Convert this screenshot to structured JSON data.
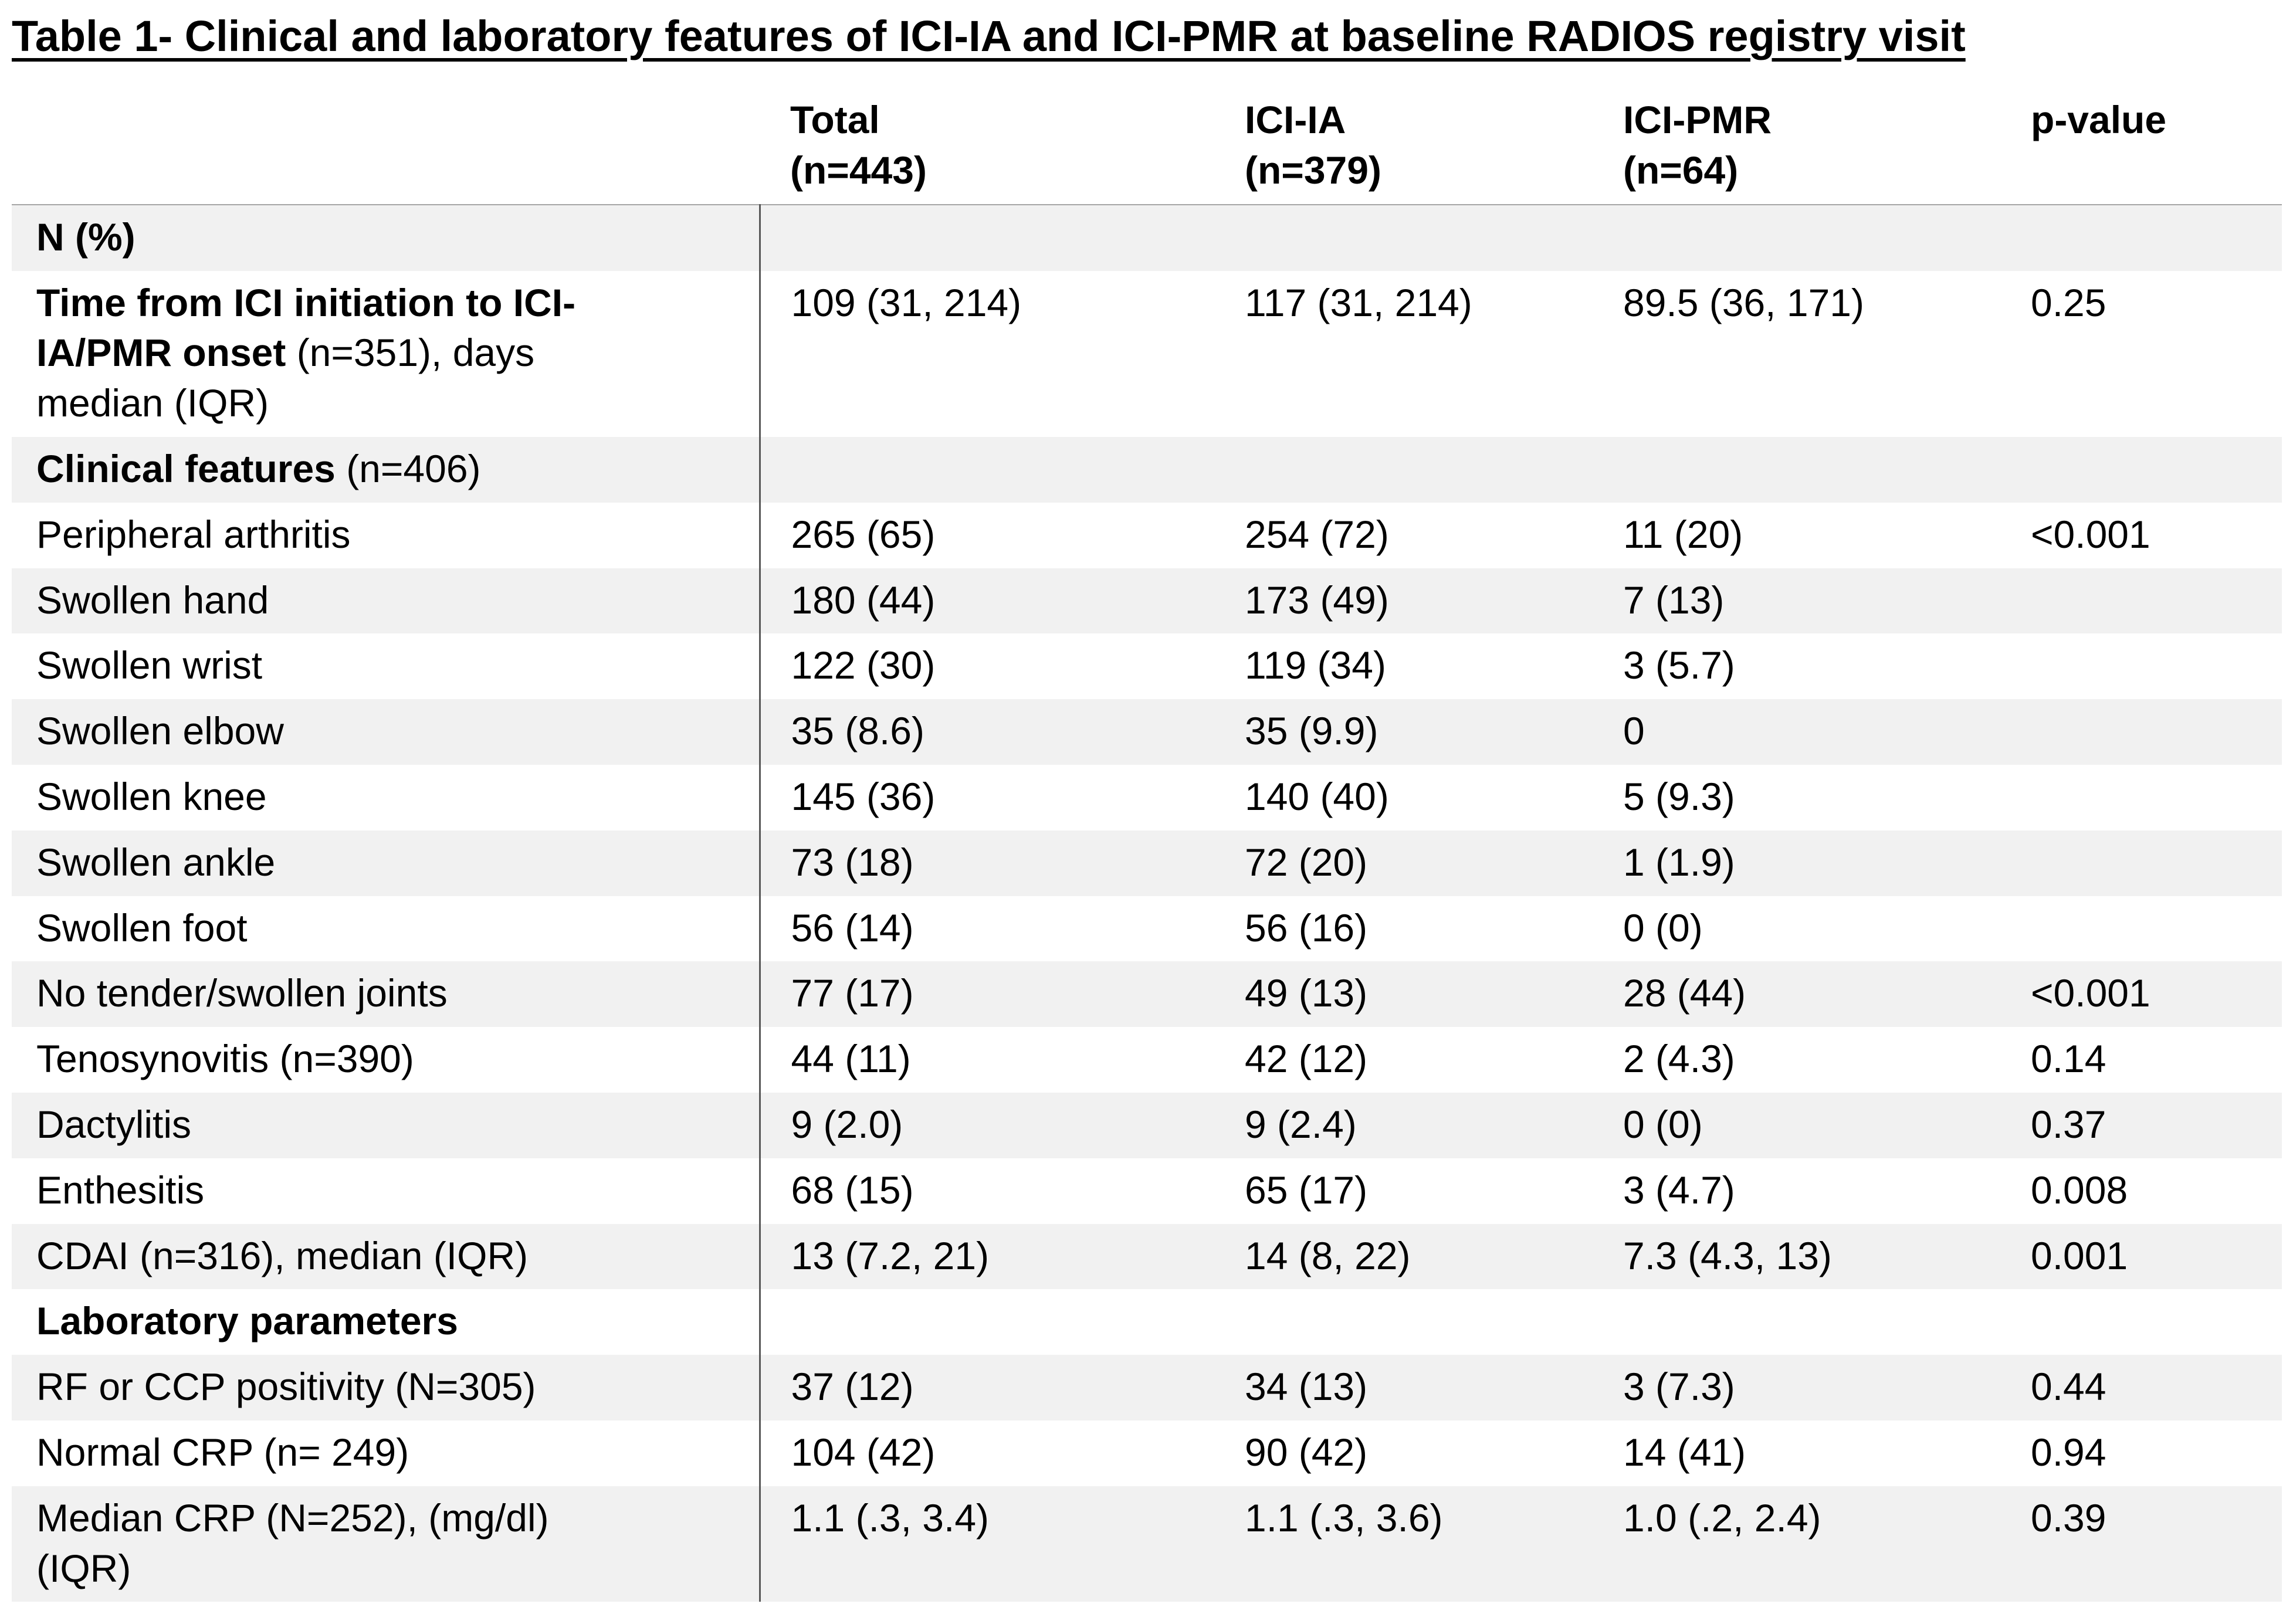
{
  "title": "Table 1- Clinical and laboratory features of ICI-IA and ICI-PMR at baseline RADIOS registry visit",
  "table": {
    "columns": [
      {
        "label": "",
        "sub": ""
      },
      {
        "label": "Total",
        "sub": "(n=443)"
      },
      {
        "label": "ICI-IA",
        "sub": "(n=379)"
      },
      {
        "label": "ICI-PMR",
        "sub": "(n=64)"
      },
      {
        "label": "p-value",
        "sub": ""
      }
    ],
    "rows": [
      {
        "bold": "N (%)",
        "text": "",
        "values": [
          "",
          "",
          "",
          ""
        ]
      },
      {
        "bold": "Time from ICI initiation to ICI-IA/PMR onset",
        "text": " (n=351), days median (IQR)",
        "values": [
          "109 (31, 214)",
          "117 (31, 214)",
          "89.5 (36, 171)",
          "0.25"
        ]
      },
      {
        "bold": "Clinical features",
        "text": " (n=406)",
        "values": [
          "",
          "",
          "",
          ""
        ]
      },
      {
        "bold": "",
        "text": "Peripheral arthritis",
        "values": [
          "265 (65)",
          "254 (72)",
          "11 (20)",
          "<0.001"
        ]
      },
      {
        "bold": "",
        "text": "Swollen hand",
        "values": [
          "180 (44)",
          "173 (49)",
          "7 (13)",
          ""
        ]
      },
      {
        "bold": "",
        "text": "Swollen wrist",
        "values": [
          "122 (30)",
          "119 (34)",
          "3 (5.7)",
          ""
        ]
      },
      {
        "bold": "",
        "text": "Swollen elbow",
        "values": [
          "35 (8.6)",
          "35 (9.9)",
          "0",
          ""
        ]
      },
      {
        "bold": "",
        "text": "Swollen knee",
        "values": [
          "145 (36)",
          "140 (40)",
          "5 (9.3)",
          ""
        ]
      },
      {
        "bold": "",
        "text": "Swollen ankle",
        "values": [
          "73 (18)",
          "72 (20)",
          "1 (1.9)",
          ""
        ]
      },
      {
        "bold": "",
        "text": "Swollen foot",
        "values": [
          "56 (14)",
          "56 (16)",
          "0 (0)",
          ""
        ]
      },
      {
        "bold": "",
        "text": "No tender/swollen joints",
        "values": [
          "77 (17)",
          "49 (13)",
          "28 (44)",
          "<0.001"
        ]
      },
      {
        "bold": "",
        "text": "Tenosynovitis (n=390)",
        "values": [
          "44 (11)",
          "42 (12)",
          "2 (4.3)",
          "0.14"
        ]
      },
      {
        "bold": "",
        "text": "Dactylitis",
        "values": [
          "9 (2.0)",
          "9 (2.4)",
          "0 (0)",
          "0.37"
        ]
      },
      {
        "bold": "",
        "text": "Enthesitis",
        "values": [
          "68 (15)",
          "65 (17)",
          "3 (4.7)",
          "0.008"
        ]
      },
      {
        "bold": "",
        "text": "CDAI (n=316), median (IQR)",
        "values": [
          "13 (7.2, 21)",
          "14 (8, 22)",
          "7.3 (4.3, 13)",
          "0.001"
        ]
      },
      {
        "bold": "Laboratory parameters",
        "text": "",
        "values": [
          "",
          "",
          "",
          ""
        ]
      },
      {
        "bold": "",
        "text": "RF or CCP positivity (N=305)",
        "values": [
          "37 (12)",
          "34 (13)",
          "3 (7.3)",
          "0.44"
        ]
      },
      {
        "bold": "",
        "text": "Normal CRP (n= 249)",
        "values": [
          "104 (42)",
          "90 (42)",
          "14 (41)",
          "0.94"
        ]
      },
      {
        "bold": "",
        "text": "Median CRP (N=252), (mg/dl) (IQR)",
        "values": [
          "1.1 (.3, 3.4)",
          "1.1 (.3, 3.6)",
          "1.0 (.2, 2.4)",
          "0.39"
        ]
      }
    ]
  }
}
